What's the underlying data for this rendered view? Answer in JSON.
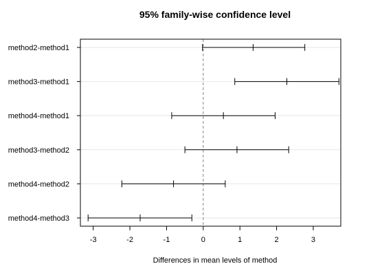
{
  "chart_data": {
    "type": "interval",
    "title": "95% family-wise confidence level",
    "xlabel": "Differences in mean levels of method",
    "ylabel": "",
    "xlim": [
      -3.35,
      3.75
    ],
    "xticks": [
      -3,
      -2,
      -1,
      0,
      1,
      2,
      3
    ],
    "reference_line": 0,
    "grid": "horizontal",
    "comparisons": [
      {
        "label": "method2-method1",
        "lower": -0.02,
        "estimate": 1.36,
        "upper": 2.77
      },
      {
        "label": "method3-method1",
        "lower": 0.86,
        "estimate": 2.28,
        "upper": 3.7
      },
      {
        "label": "method4-method1",
        "lower": -0.86,
        "estimate": 0.55,
        "upper": 1.96
      },
      {
        "label": "method3-method2",
        "lower": -0.5,
        "estimate": 0.92,
        "upper": 2.33
      },
      {
        "label": "method4-method2",
        "lower": -2.22,
        "estimate": -0.81,
        "upper": 0.6
      },
      {
        "label": "method4-method3",
        "lower": -3.14,
        "estimate": -1.72,
        "upper": -0.31
      }
    ]
  }
}
